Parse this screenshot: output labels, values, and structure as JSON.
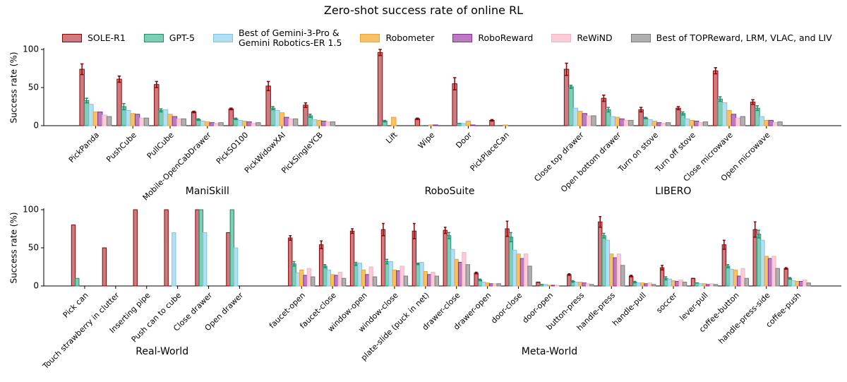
{
  "title": "Zero-shot success rate of online RL",
  "chart_data": [
    {
      "type": "bar",
      "ylabel": "Success rate (%)",
      "ylim": [
        0,
        100
      ],
      "yticks": [
        0,
        50,
        100
      ],
      "groups": [
        {
          "name": "ManiSkill",
          "categories": [
            "PickPanda",
            "PushCube",
            "PullCube",
            "Mobile-OpenCabDrawer",
            "PickSO100",
            "PickWidowXAI",
            "PickSingleYCB"
          ]
        },
        {
          "name": "RoboSuite",
          "categories": [
            "Lift",
            "Wipe",
            "Door",
            "PickPlaceCan"
          ]
        },
        {
          "name": "LIBERO",
          "categories": [
            "Close top drawer",
            "Open bottom drawer",
            "Turn on stove",
            "Turn off stove",
            "Close microwave",
            "Open microwave"
          ]
        }
      ],
      "series": [
        {
          "name": "SOLE-R1",
          "color": "#cd7a80",
          "edgecolor": "#8b0000",
          "values": [
            74,
            61,
            54,
            18,
            22,
            52,
            27,
            96,
            9,
            55,
            7,
            74,
            36,
            21,
            23,
            72,
            31
          ],
          "errors": [
            7,
            4,
            4,
            1,
            1,
            6,
            3,
            4,
            1,
            8,
            1,
            8,
            4,
            3,
            2,
            4,
            3
          ]
        },
        {
          "name": "GPT-5",
          "color": "#7fcdb5",
          "edgecolor": "#1a8f6e",
          "values": [
            33,
            25,
            20,
            8,
            9,
            23,
            13,
            6,
            0,
            3,
            0,
            51,
            21,
            10,
            16,
            35,
            23
          ],
          "errors": [
            3,
            4,
            2,
            1,
            1,
            2,
            2,
            1,
            0,
            0,
            0,
            2,
            3,
            1,
            2,
            3,
            3
          ]
        },
        {
          "name": "Best of Gemini-3-Pro &\nGemini Robotics-ER 1.5",
          "color": "#b3dff2",
          "edgecolor": "#7fc4e4",
          "values": [
            28,
            20,
            21,
            6,
            7,
            20,
            8,
            0,
            0,
            3,
            0,
            23,
            12,
            8,
            9,
            30,
            12
          ]
        },
        {
          "name": "Robometer",
          "color": "#f5c26b",
          "edgecolor": "#eea530",
          "values": [
            18,
            16,
            15,
            5,
            6,
            17,
            7,
            11,
            1,
            6,
            1,
            19,
            11,
            6,
            7,
            20,
            7
          ]
        },
        {
          "name": "RoboReward",
          "color": "#b97cc0",
          "edgecolor": "#8a2f96",
          "values": [
            18,
            15,
            12,
            4,
            5,
            11,
            6,
            0,
            1,
            1,
            0,
            16,
            9,
            4,
            6,
            15,
            7
          ]
        },
        {
          "name": "ReWiND",
          "color": "#f9ccd8",
          "edgecolor": "#f4b3c4",
          "values": [
            14,
            10,
            9,
            3,
            3,
            9,
            5,
            0,
            0,
            0,
            0,
            13,
            7,
            3,
            4,
            10,
            4
          ]
        },
        {
          "name": "Best of TOPReward, LRM, VLAC, and LIV",
          "color": "#b0b0b0",
          "edgecolor": "#7a7a7a",
          "values": [
            12,
            10,
            9,
            4,
            4,
            9,
            5,
            0,
            0,
            0,
            0,
            13,
            7,
            4,
            5,
            12,
            5
          ]
        }
      ]
    },
    {
      "type": "bar",
      "ylabel": "Success rate (%)",
      "ylim": [
        0,
        100
      ],
      "yticks": [
        0,
        50,
        100
      ],
      "groups": [
        {
          "name": "Real-World",
          "categories": [
            "Pick can",
            "Touch strawberry in clutter",
            "Inserting pipe",
            "Push can to cube",
            "Close drawer",
            "Open drawer"
          ]
        },
        {
          "name": "Meta-World",
          "categories": [
            "faucet-open",
            "faucet-close",
            "window-open",
            "window-close",
            "plate-slide (puck in net)",
            "drawer-close",
            "drawer-open",
            "door-close",
            "door-open",
            "button-press",
            "handle-press",
            "handle-pull",
            "soccer",
            "lever-pull",
            "coffee-button",
            "handle-press-side",
            "coffee-push"
          ]
        }
      ],
      "series": [
        {
          "name": "SOLE-R1",
          "color": "#cd7a80",
          "edgecolor": "#8b0000",
          "values": [
            80,
            50,
            100,
            100,
            100,
            70,
            63,
            54,
            72,
            74,
            72,
            73,
            17,
            75,
            5,
            15,
            84,
            13,
            24,
            10,
            54,
            74,
            23
          ],
          "errors": [
            null,
            null,
            null,
            null,
            null,
            null,
            3,
            5,
            3,
            8,
            10,
            4,
            1,
            10,
            0,
            1,
            7,
            1,
            3,
            0,
            6,
            10,
            1
          ]
        },
        {
          "name": "GPT-5",
          "color": "#7fcdb5",
          "edgecolor": "#1a8f6e",
          "values": [
            10,
            0,
            0,
            0,
            100,
            100,
            29,
            26,
            29,
            32,
            29,
            66,
            8,
            64,
            2,
            6,
            66,
            5,
            10,
            4,
            26,
            68,
            10
          ],
          "errors": [
            null,
            null,
            null,
            null,
            null,
            null,
            3,
            2,
            2,
            3,
            1,
            4,
            1,
            6,
            0,
            1,
            3,
            1,
            2,
            0,
            2,
            5,
            1
          ]
        },
        {
          "name": "Best of Gemini-3-Pro &\nGemini Robotics-ER 1.5",
          "color": "#b3dff2",
          "edgecolor": "#7fc4e4",
          "values": [
            0,
            0,
            0,
            70,
            70,
            50,
            17,
            21,
            30,
            32,
            31,
            48,
            5,
            47,
            2,
            5,
            60,
            4,
            9,
            3,
            22,
            60,
            7
          ]
        },
        {
          "name": "Robometer",
          "color": "#f5c26b",
          "edgecolor": "#eea530",
          "values": [
            0,
            0,
            0,
            0,
            0,
            0,
            21,
            15,
            21,
            21,
            19,
            35,
            4,
            42,
            1,
            5,
            42,
            4,
            7,
            3,
            21,
            39,
            6
          ]
        },
        {
          "name": "RoboReward",
          "color": "#b97cc0",
          "edgecolor": "#8a2f96",
          "values": [
            0,
            0,
            0,
            0,
            0,
            0,
            14,
            14,
            15,
            20,
            15,
            31,
            3,
            36,
            1,
            4,
            37,
            3,
            6,
            2,
            13,
            36,
            6
          ]
        },
        {
          "name": "ReWiND",
          "color": "#f9ccd8",
          "edgecolor": "#f4b3c4",
          "values": [
            0,
            0,
            0,
            0,
            0,
            0,
            23,
            18,
            25,
            26,
            18,
            44,
            3,
            42,
            1,
            3,
            42,
            4,
            8,
            3,
            23,
            39,
            8
          ]
        },
        {
          "name": "Best of TOPReward, LRM, VLAC, and LIV",
          "color": "#b0b0b0",
          "edgecolor": "#7a7a7a",
          "values": [
            0,
            0,
            0,
            0,
            0,
            0,
            12,
            10,
            12,
            13,
            13,
            28,
            3,
            26,
            0,
            2,
            27,
            2,
            5,
            2,
            10,
            23,
            4
          ]
        }
      ]
    }
  ]
}
